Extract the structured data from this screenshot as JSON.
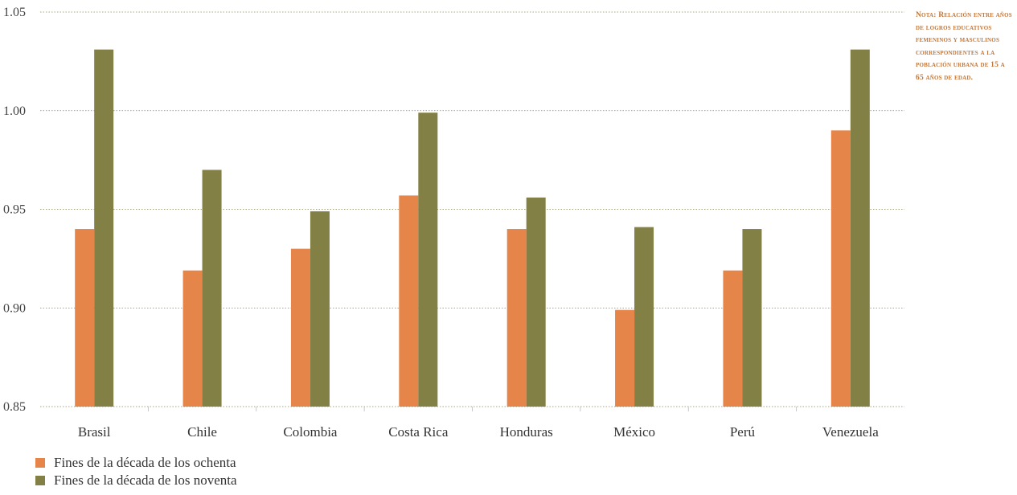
{
  "chart_data": {
    "type": "bar",
    "categories": [
      "Brasil",
      "Chile",
      "Colombia",
      "Costa Rica",
      "Honduras",
      "México",
      "Perú",
      "Venezuela"
    ],
    "series": [
      {
        "name": "Fines de la década de los ochenta",
        "color": "#e5854a",
        "values": [
          0.94,
          0.919,
          0.93,
          0.957,
          0.94,
          0.899,
          0.919,
          0.99
        ]
      },
      {
        "name": "Fines de la década de los noventa",
        "color": "#838045",
        "values": [
          1.031,
          0.97,
          0.949,
          0.999,
          0.956,
          0.941,
          0.94,
          1.031
        ]
      }
    ],
    "ylim": [
      0.85,
      1.05
    ],
    "yticks": [
      "0.85",
      "0.90",
      "0.95",
      "1.00",
      "1.05"
    ],
    "grid": "horizontal dotted",
    "legend_position": "bottom-left"
  },
  "note": "Nota: Relación entre años de logros educativos femeninos y masculinos correspondientes a la población urbana de 15 a 65 años de edad."
}
